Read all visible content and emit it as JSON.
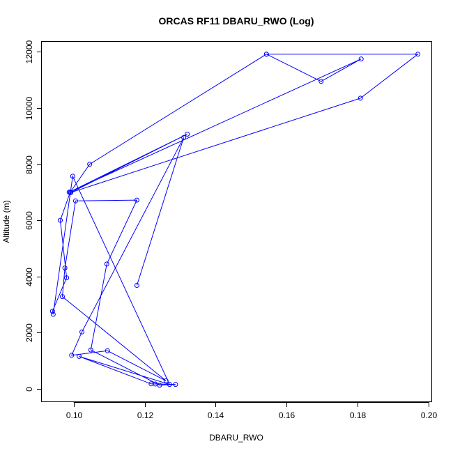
{
  "chart_data": {
    "type": "line",
    "title": "ORCAS RF11 DBARU_RWO (Log)",
    "xlabel": "DBARU_RWO",
    "ylabel": "Altitude (m)",
    "xlim": [
      0.091,
      0.201
    ],
    "ylim": [
      -480,
      12360
    ],
    "xticks": [
      0.1,
      0.12,
      0.14,
      0.16,
      0.18,
      0.2
    ],
    "xtick_labels": [
      "0.10",
      "0.12",
      "0.14",
      "0.16",
      "0.18",
      "0.20"
    ],
    "yticks": [
      0,
      2000,
      4000,
      6000,
      8000,
      10000,
      12000
    ],
    "ytick_labels": [
      "0",
      "2000",
      "4000",
      "6000",
      "8000",
      "10000",
      "12000"
    ],
    "grid": false,
    "markers": "open-circle",
    "series_color": "#0000ff",
    "series": [
      {
        "x": [
          0.1543,
          0.1697,
          0.181,
          0.0987,
          0.132,
          0.0992,
          0.1808,
          0.197,
          0.1543,
          0.1045,
          0.099,
          0.0962,
          0.098,
          0.094,
          0.0942,
          0.0997,
          0.127,
          0.1015,
          0.1218,
          0.123,
          0.1287,
          0.1242,
          0.1048,
          0.1093,
          0.1178,
          0.1005,
          0.0975,
          0.0968,
          0.126,
          0.1095,
          0.0994,
          0.1023,
          0.131,
          0.1178
        ],
        "y": [
          11920,
          10950,
          11750,
          7000,
          9070,
          6990,
          10350,
          11920,
          11920,
          8000,
          7000,
          6000,
          3950,
          2760,
          2650,
          7570,
          150,
          1150,
          170,
          165,
          150,
          125,
          1380,
          4440,
          6720,
          6690,
          4300,
          3280,
          280,
          1350,
          1190,
          2020,
          8950,
          3680
        ]
      }
    ]
  }
}
